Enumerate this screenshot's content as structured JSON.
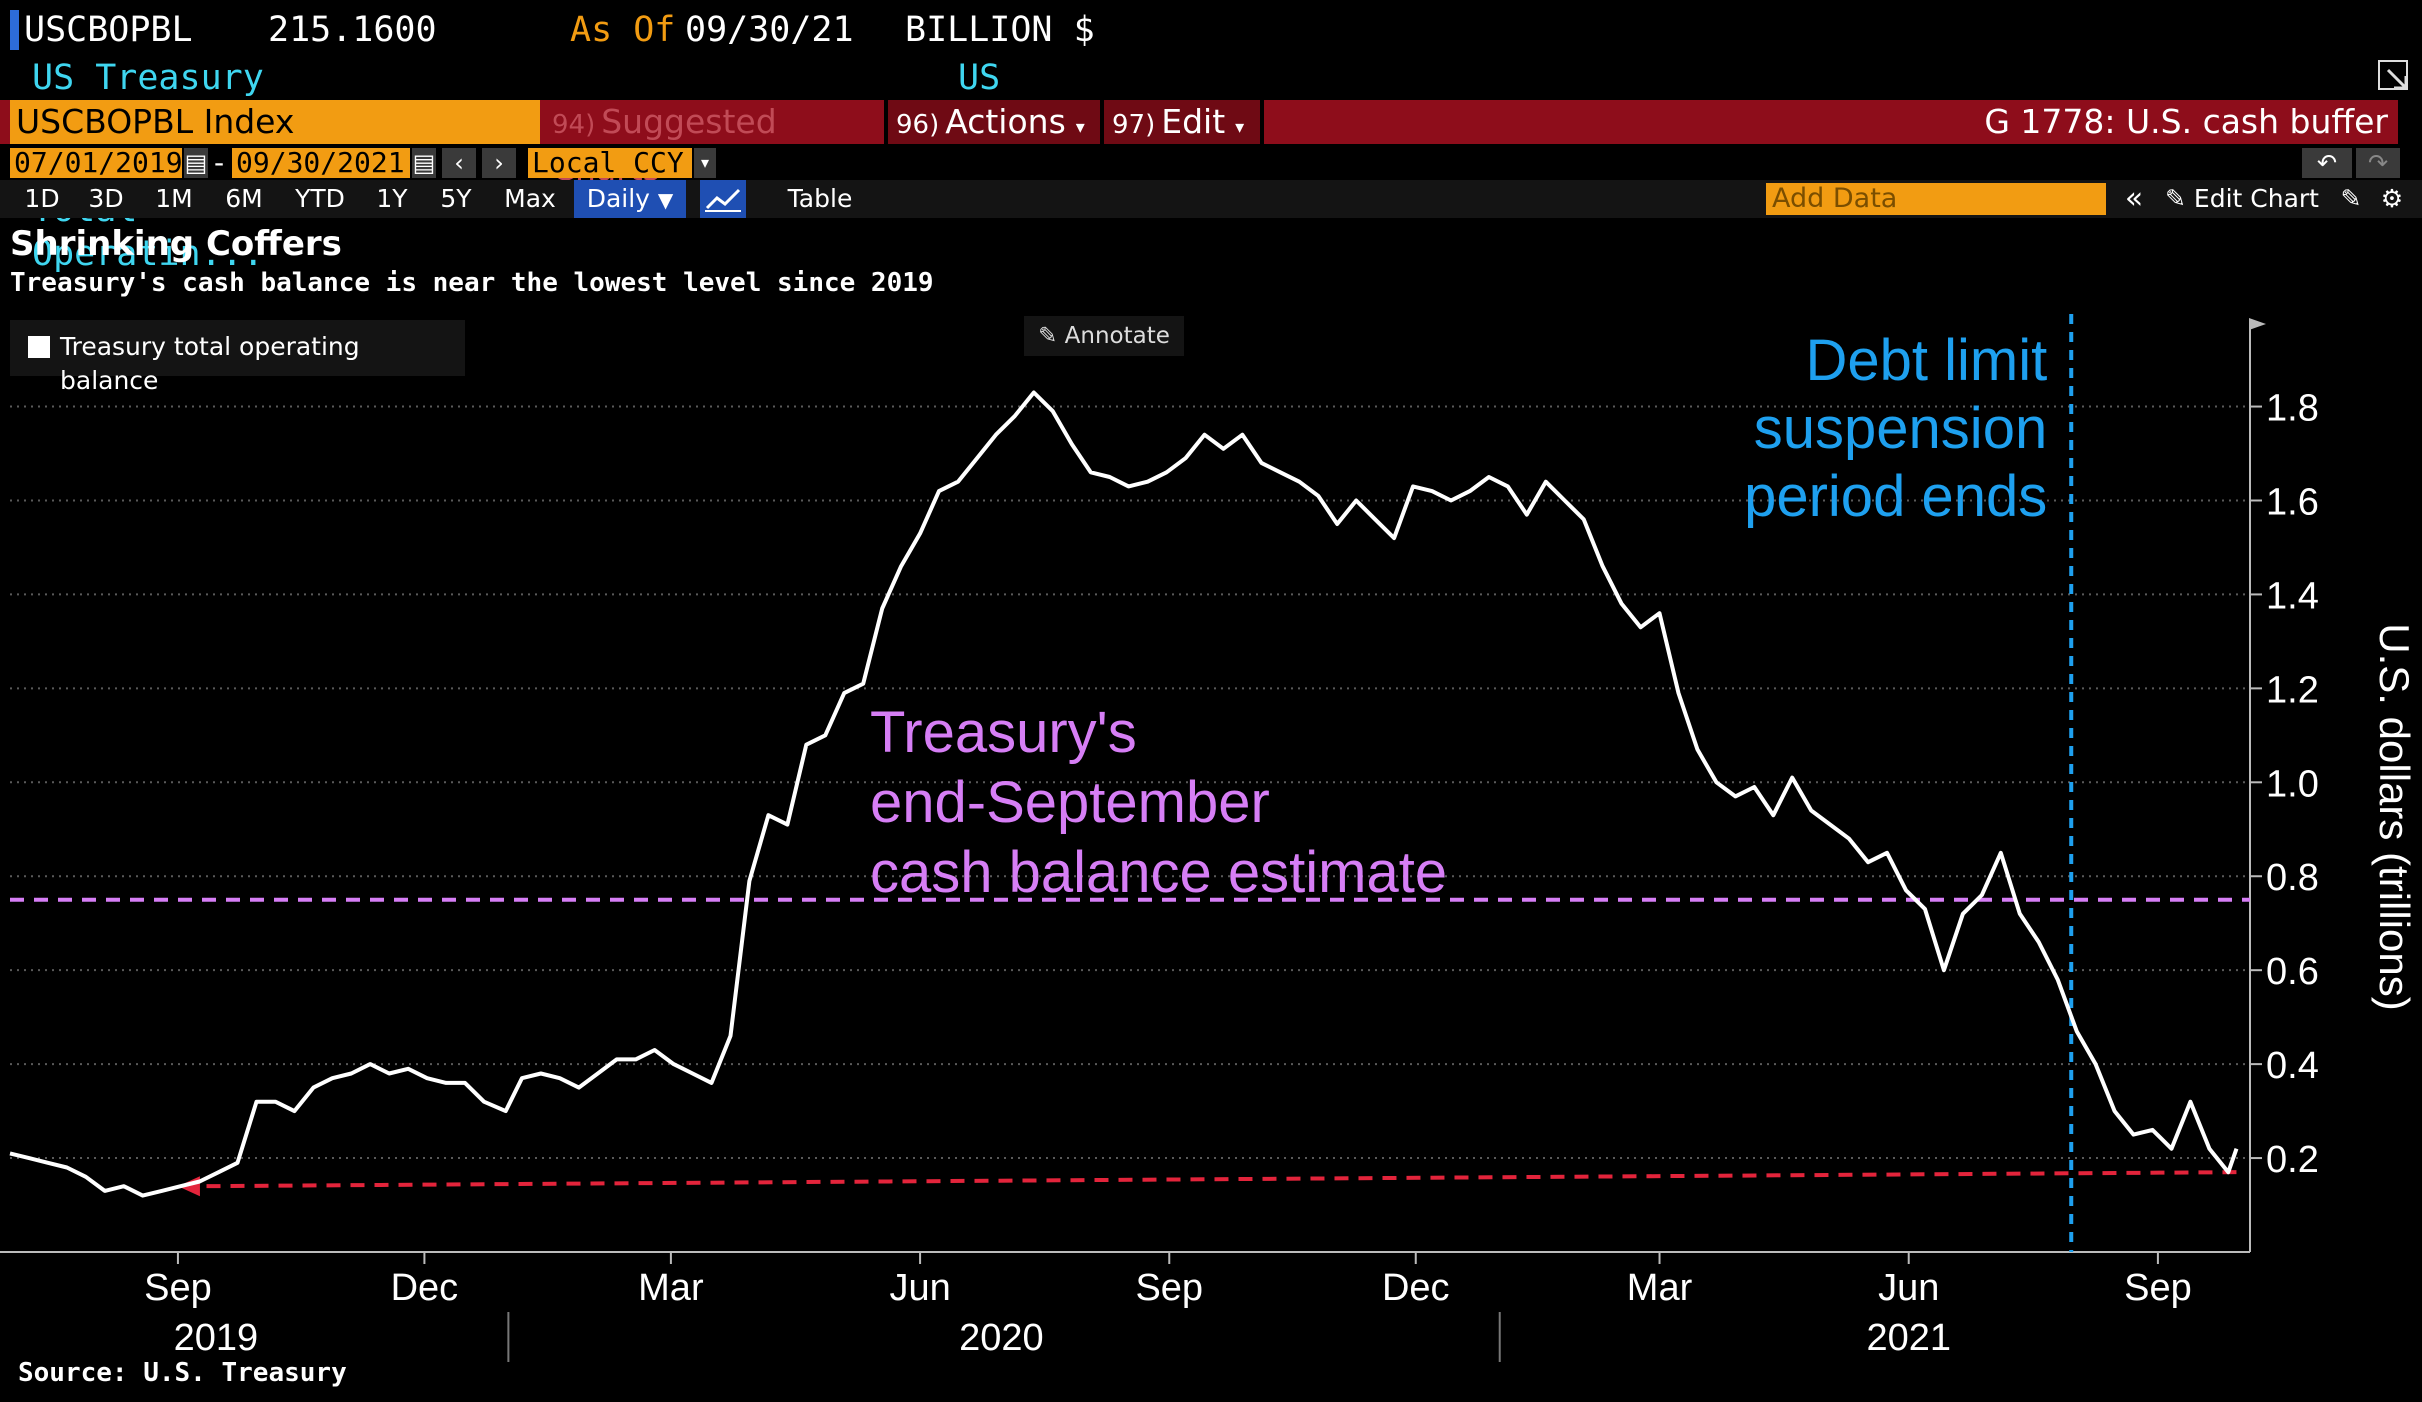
{
  "header": {
    "ticker": "USCBOPBL",
    "last_value": "215.1600",
    "as_of_label": "As Of",
    "as_of_date": "09/30/21",
    "units": "BILLION $",
    "description": "US Treasury Cash Balance Total Operatin...",
    "source_name": "US Treasury"
  },
  "toolbar": {
    "ticker_field": "USCBOPBL Index",
    "suggested_num": "94)",
    "suggested_label": "Suggested Charts",
    "actions_num": "96)",
    "actions_label": "Actions",
    "edit_num": "97)",
    "edit_label": "Edit",
    "chart_id": "G 1778: U.S. cash buffer",
    "start_date": "07/01/2019",
    "end_date": "09/30/2021",
    "currency": "Local CCY",
    "periods": [
      "1D",
      "3D",
      "1M",
      "6M",
      "YTD",
      "1Y",
      "5Y",
      "Max"
    ],
    "frequency": "Daily",
    "table_label": "Table",
    "add_data_placeholder": "Add Data",
    "edit_chart_label": "Edit Chart",
    "annotate_label": "Annotate"
  },
  "colors": {
    "background": "#000000",
    "line": "#ffffff",
    "estimate": "#d67ef5",
    "debt_limit": "#1ea0ef",
    "arrow": "#e3243b",
    "accent": "#f29c12",
    "bar": "#8e0d1b"
  },
  "chart_data": {
    "type": "line",
    "title": "Shrinking Coffers",
    "subtitle": "Treasury's cash balance is near the lowest level since 2019",
    "ylabel": "U.S. dollars (trillions)",
    "ylim": [
      0.0,
      1.98
    ],
    "yticks": [
      0.2,
      0.4,
      0.6,
      0.8,
      1.0,
      1.2,
      1.4,
      1.6,
      1.8
    ],
    "ytick_labels": [
      "0.2",
      "0.4",
      "0.6",
      "0.8",
      "1.0",
      "1.2",
      "1.4",
      "1.6",
      "1.8"
    ],
    "xlim": [
      "2019-07-01",
      "2021-10-05"
    ],
    "xticks": [
      "2019-09-01",
      "2019-12-01",
      "2020-03-01",
      "2020-06-01",
      "2020-09-01",
      "2020-12-01",
      "2021-03-01",
      "2021-06-01",
      "2021-09-01"
    ],
    "xtick_labels": [
      "Sep",
      "Dec",
      "Mar",
      "Jun",
      "Sep",
      "Dec",
      "Mar",
      "Jun",
      "Sep"
    ],
    "year_labels": [
      {
        "date": "2019-09-15",
        "label": "2019"
      },
      {
        "date": "2020-07-01",
        "label": "2020"
      },
      {
        "date": "2021-06-01",
        "label": "2021"
      }
    ],
    "grid": true,
    "legend_position": "top-left",
    "series": [
      {
        "name": "Treasury total operating balance",
        "points": [
          [
            "2019-07-01",
            0.21
          ],
          [
            "2019-07-08",
            0.2
          ],
          [
            "2019-07-15",
            0.19
          ],
          [
            "2019-07-22",
            0.18
          ],
          [
            "2019-07-29",
            0.16
          ],
          [
            "2019-08-05",
            0.13
          ],
          [
            "2019-08-12",
            0.14
          ],
          [
            "2019-08-19",
            0.12
          ],
          [
            "2019-08-26",
            0.13
          ],
          [
            "2019-09-02",
            0.14
          ],
          [
            "2019-09-09",
            0.15
          ],
          [
            "2019-09-16",
            0.17
          ],
          [
            "2019-09-23",
            0.19
          ],
          [
            "2019-09-30",
            0.32
          ],
          [
            "2019-10-07",
            0.32
          ],
          [
            "2019-10-14",
            0.3
          ],
          [
            "2019-10-21",
            0.35
          ],
          [
            "2019-10-28",
            0.37
          ],
          [
            "2019-11-04",
            0.38
          ],
          [
            "2019-11-11",
            0.4
          ],
          [
            "2019-11-18",
            0.38
          ],
          [
            "2019-11-25",
            0.39
          ],
          [
            "2019-12-02",
            0.37
          ],
          [
            "2019-12-09",
            0.36
          ],
          [
            "2019-12-16",
            0.36
          ],
          [
            "2019-12-23",
            0.32
          ],
          [
            "2019-12-31",
            0.3
          ],
          [
            "2020-01-06",
            0.37
          ],
          [
            "2020-01-13",
            0.38
          ],
          [
            "2020-01-20",
            0.37
          ],
          [
            "2020-01-27",
            0.35
          ],
          [
            "2020-02-03",
            0.38
          ],
          [
            "2020-02-10",
            0.41
          ],
          [
            "2020-02-17",
            0.41
          ],
          [
            "2020-02-24",
            0.43
          ],
          [
            "2020-03-02",
            0.4
          ],
          [
            "2020-03-09",
            0.38
          ],
          [
            "2020-03-16",
            0.36
          ],
          [
            "2020-03-23",
            0.46
          ],
          [
            "2020-03-30",
            0.79
          ],
          [
            "2020-04-06",
            0.93
          ],
          [
            "2020-04-13",
            0.91
          ],
          [
            "2020-04-20",
            1.08
          ],
          [
            "2020-04-27",
            1.1
          ],
          [
            "2020-05-04",
            1.19
          ],
          [
            "2020-05-11",
            1.21
          ],
          [
            "2020-05-18",
            1.37
          ],
          [
            "2020-05-25",
            1.46
          ],
          [
            "2020-06-01",
            1.53
          ],
          [
            "2020-06-08",
            1.62
          ],
          [
            "2020-06-15",
            1.64
          ],
          [
            "2020-06-22",
            1.69
          ],
          [
            "2020-06-29",
            1.74
          ],
          [
            "2020-07-06",
            1.78
          ],
          [
            "2020-07-13",
            1.83
          ],
          [
            "2020-07-20",
            1.79
          ],
          [
            "2020-07-27",
            1.72
          ],
          [
            "2020-08-03",
            1.66
          ],
          [
            "2020-08-10",
            1.65
          ],
          [
            "2020-08-17",
            1.63
          ],
          [
            "2020-08-24",
            1.64
          ],
          [
            "2020-08-31",
            1.66
          ],
          [
            "2020-09-07",
            1.69
          ],
          [
            "2020-09-14",
            1.74
          ],
          [
            "2020-09-21",
            1.71
          ],
          [
            "2020-09-28",
            1.74
          ],
          [
            "2020-10-05",
            1.68
          ],
          [
            "2020-10-12",
            1.66
          ],
          [
            "2020-10-19",
            1.64
          ],
          [
            "2020-10-26",
            1.61
          ],
          [
            "2020-11-02",
            1.55
          ],
          [
            "2020-11-09",
            1.6
          ],
          [
            "2020-11-16",
            1.56
          ],
          [
            "2020-11-23",
            1.52
          ],
          [
            "2020-11-30",
            1.63
          ],
          [
            "2020-12-07",
            1.62
          ],
          [
            "2020-12-14",
            1.6
          ],
          [
            "2020-12-21",
            1.62
          ],
          [
            "2020-12-28",
            1.65
          ],
          [
            "2021-01-04",
            1.63
          ],
          [
            "2021-01-11",
            1.57
          ],
          [
            "2021-01-18",
            1.64
          ],
          [
            "2021-01-25",
            1.6
          ],
          [
            "2021-02-01",
            1.56
          ],
          [
            "2021-02-08",
            1.46
          ],
          [
            "2021-02-15",
            1.38
          ],
          [
            "2021-02-22",
            1.33
          ],
          [
            "2021-03-01",
            1.36
          ],
          [
            "2021-03-08",
            1.19
          ],
          [
            "2021-03-15",
            1.07
          ],
          [
            "2021-03-22",
            1.0
          ],
          [
            "2021-03-29",
            0.97
          ],
          [
            "2021-04-05",
            0.99
          ],
          [
            "2021-04-12",
            0.93
          ],
          [
            "2021-04-19",
            1.01
          ],
          [
            "2021-04-26",
            0.94
          ],
          [
            "2021-05-03",
            0.91
          ],
          [
            "2021-05-10",
            0.88
          ],
          [
            "2021-05-17",
            0.83
          ],
          [
            "2021-05-24",
            0.85
          ],
          [
            "2021-05-31",
            0.77
          ],
          [
            "2021-06-07",
            0.73
          ],
          [
            "2021-06-14",
            0.6
          ],
          [
            "2021-06-21",
            0.72
          ],
          [
            "2021-06-28",
            0.76
          ],
          [
            "2021-07-05",
            0.85
          ],
          [
            "2021-07-12",
            0.72
          ],
          [
            "2021-07-19",
            0.66
          ],
          [
            "2021-07-26",
            0.58
          ],
          [
            "2021-08-02",
            0.47
          ],
          [
            "2021-08-09",
            0.4
          ],
          [
            "2021-08-16",
            0.3
          ],
          [
            "2021-08-23",
            0.25
          ],
          [
            "2021-08-30",
            0.26
          ],
          [
            "2021-09-06",
            0.22
          ],
          [
            "2021-09-13",
            0.32
          ],
          [
            "2021-09-20",
            0.22
          ],
          [
            "2021-09-27",
            0.17
          ],
          [
            "2021-09-30",
            0.22
          ]
        ]
      }
    ],
    "annotations": [
      {
        "type": "hline",
        "y": 0.75,
        "style": "dashed",
        "color": "#d67ef5",
        "text": [
          "Treasury's",
          "end-September",
          "cash balance estimate"
        ]
      },
      {
        "type": "vline",
        "x": "2021-07-31",
        "style": "dashed",
        "color": "#1ea0ef",
        "text": [
          "Debt limit",
          "suspension",
          "period ends"
        ]
      },
      {
        "type": "arrow",
        "from": [
          "2021-09-30",
          0.17
        ],
        "to": [
          "2019-09-01",
          0.14
        ],
        "style": "dashed",
        "color": "#e3243b"
      }
    ],
    "source": "Source: U.S. Treasury"
  }
}
